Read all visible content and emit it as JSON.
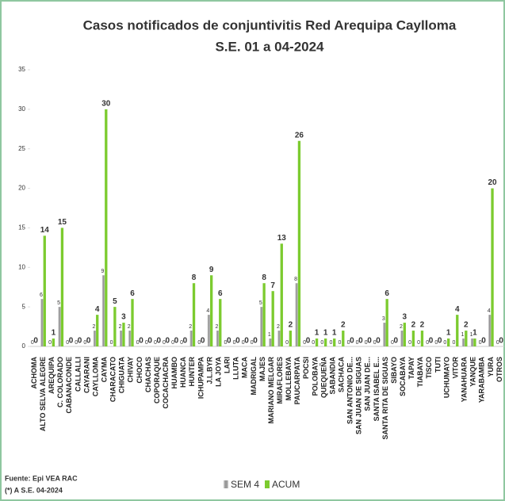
{
  "chart_data": {
    "type": "bar",
    "title": "Casos notificados de conjuntivitis Red Arequipa Caylloma",
    "subtitle": "S.E. 01 a 04-2024",
    "categories": [
      "ACHOMA",
      "ALTO SELVA ALEGRE",
      "AREQUIPA",
      "C. COLORADO",
      "CABANACONDE",
      "CALLALLI",
      "CAYARANI",
      "CAYLLOMA",
      "CAYMA",
      "CHARACATO",
      "CHIGUATA",
      "CHIVAY",
      "CHOCO",
      "CHACHAS",
      "COPORAQUE",
      "COCACHACRA",
      "HUAMBO",
      "HUANCA",
      "HUNTER",
      "ICHUPAMPA",
      "J.L.BYR",
      "LA JOYA",
      "LARI",
      "LLUTA",
      "MACA",
      "MADRIGAL",
      "MAJES",
      "MARIANO MELGAR",
      "MIRAFLORES",
      "MOLLEBAYA",
      "PAUCARPATA",
      "POCSI",
      "POLOBAYA",
      "QUEQUEÑA",
      "SABANDIA",
      "SACHACA",
      "SAN ANTONIO DE...",
      "SAN JUAN DE SIGUAS",
      "SAN JUAN DE...",
      "SANTA ISABEL E...",
      "SANTA RITA DE SIGUAS",
      "SIBAYO",
      "SOCABAYA",
      "TAPAY",
      "TIABAYA",
      "TISCO",
      "TUTI",
      "UCHUMAYO",
      "VITOR",
      "YANAHUARA",
      "YANQUE",
      "YARABAMBA",
      "YURA",
      "OTROS"
    ],
    "series": [
      {
        "name": "SEM 4",
        "color": "#a6a6a6",
        "values": [
          0,
          6,
          0,
          5,
          0,
          0,
          0,
          2,
          9,
          0,
          2,
          2,
          0,
          0,
          0,
          0,
          0,
          0,
          2,
          0,
          4,
          2,
          0,
          0,
          0,
          0,
          5,
          1,
          2,
          0,
          8,
          0,
          0,
          0,
          0,
          0,
          0,
          0,
          0,
          0,
          3,
          0,
          2,
          0,
          0,
          0,
          0,
          0,
          0,
          1,
          1,
          0,
          4,
          0
        ]
      },
      {
        "name": "ACUM",
        "color": "#7ccb2f",
        "values": [
          0,
          14,
          1,
          15,
          0,
          0,
          0,
          4,
          30,
          5,
          3,
          6,
          0,
          0,
          0,
          0,
          0,
          0,
          8,
          0,
          9,
          6,
          0,
          0,
          0,
          0,
          8,
          7,
          13,
          2,
          26,
          0,
          1,
          1,
          1,
          2,
          0,
          0,
          0,
          0,
          6,
          0,
          3,
          2,
          2,
          0,
          0,
          1,
          4,
          2,
          1,
          0,
          20,
          0
        ]
      }
    ],
    "ylim": [
      0,
      35
    ],
    "yticks": [
      0,
      5,
      10,
      15,
      20,
      25,
      30,
      35
    ],
    "footnotes": [
      "Fuente: Epi VEA RAC",
      "(*) A S.E. 04-2024"
    ]
  }
}
